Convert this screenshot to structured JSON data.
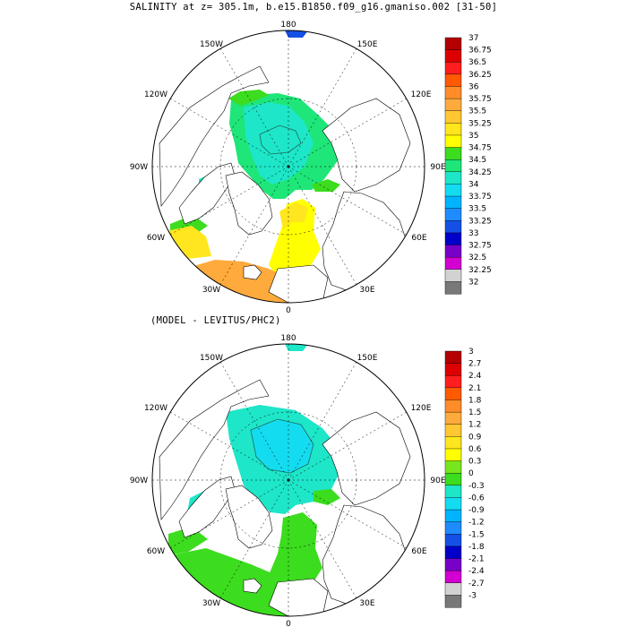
{
  "title": "SALINITY at z= 305.1m, b.e15.B1850.f09_g16.gmaniso.002 [31-50]",
  "subtitle": "(MODEL - LEVITUS/PHC2)",
  "longitude_labels": {
    "top": "180",
    "bottom": "0",
    "upper_left": "150W",
    "upper_right": "150E",
    "mid_upper_left": "120W",
    "mid_upper_right": "120E",
    "left": "90W",
    "right": "90E",
    "mid_lower_left": "60W",
    "mid_lower_right": "60E",
    "lower_left": "30W",
    "lower_right": "30E"
  },
  "panels": [
    {
      "name": "salinity",
      "colorbar": {
        "labels": [
          "37",
          "36.75",
          "36.5",
          "36.25",
          "36",
          "35.75",
          "35.5",
          "35.25",
          "35",
          "34.75",
          "34.5",
          "34.25",
          "34",
          "33.75",
          "33.5",
          "33.25",
          "33",
          "32.75",
          "32.5",
          "32.25",
          "32"
        ],
        "colors": [
          "#b40000",
          "#dc0000",
          "#ff1e1e",
          "#ff5a00",
          "#ff8c28",
          "#ffaa3c",
          "#ffc832",
          "#ffe61e",
          "#ffff00",
          "#3cdc1e",
          "#1ee678",
          "#1ee6c8",
          "#14dcf0",
          "#00b4ff",
          "#1e8cff",
          "#1450e6",
          "#0000c8",
          "#7800c8",
          "#d200d2",
          "#d2d2d2",
          "#787878"
        ]
      }
    },
    {
      "name": "difference",
      "colorbar": {
        "labels": [
          "3",
          "2.7",
          "2.4",
          "2.1",
          "1.8",
          "1.5",
          "1.2",
          "0.9",
          "0.6",
          "0.3",
          "0",
          "-0.3",
          "-0.6",
          "-0.9",
          "-1.2",
          "-1.5",
          "-1.8",
          "-2.1",
          "-2.4",
          "-2.7",
          "-3"
        ],
        "colors": [
          "#b40000",
          "#dc0000",
          "#ff1e1e",
          "#ff5a00",
          "#ff8c28",
          "#ffaa3c",
          "#ffc832",
          "#ffe61e",
          "#ffff00",
          "#78e61e",
          "#3cdc1e",
          "#1ee6c8",
          "#14dcf0",
          "#00b4ff",
          "#1e8cff",
          "#1450e6",
          "#0000c8",
          "#7800c8",
          "#d200d2",
          "#d2d2d2",
          "#787878"
        ]
      }
    }
  ]
}
